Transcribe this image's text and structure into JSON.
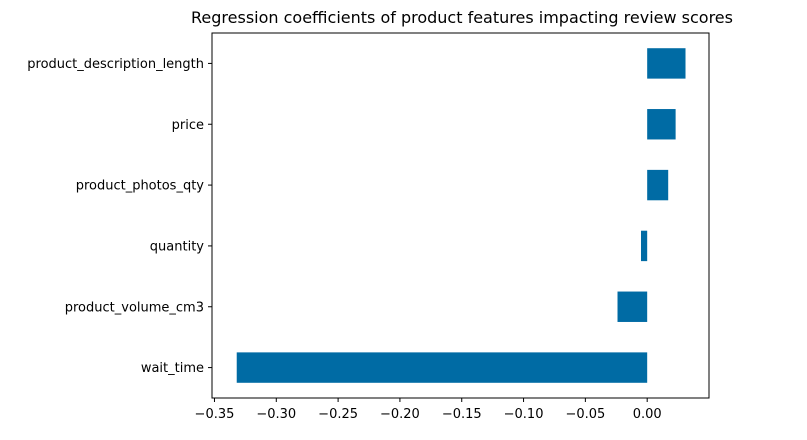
{
  "chart_data": {
    "type": "bar",
    "orientation": "horizontal",
    "title": "Regression coefficients of product features impacting review scores",
    "xlabel": "",
    "ylabel": "",
    "categories": [
      "product_description_length",
      "price",
      "product_photos_qty",
      "quantity",
      "product_volume_cm3",
      "wait_time"
    ],
    "values": [
      0.031,
      0.023,
      0.017,
      -0.005,
      -0.024,
      -0.332
    ],
    "xlim": [
      -0.352,
      0.05
    ],
    "xticks": [
      -0.35,
      -0.3,
      -0.25,
      -0.2,
      -0.15,
      -0.1,
      -0.05,
      0.0
    ],
    "xtick_labels": [
      "−0.35",
      "−0.30",
      "−0.25",
      "−0.20",
      "−0.15",
      "−0.10",
      "−0.05",
      "0.00"
    ],
    "grid": false,
    "bar_color": "#006BA4"
  }
}
